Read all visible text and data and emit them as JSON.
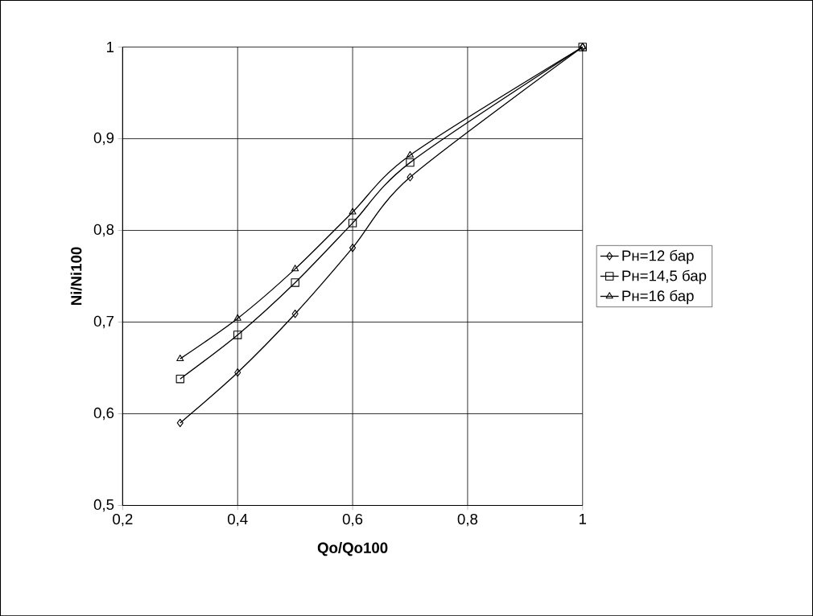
{
  "chart_data": {
    "type": "line",
    "xlabel": "Qo/Qo100",
    "ylabel": "Ni/Ni100",
    "xlim": [
      0.2,
      1
    ],
    "ylim": [
      0.5,
      1
    ],
    "xticks": [
      {
        "value": 0.2,
        "label": "0,2"
      },
      {
        "value": 0.4,
        "label": "0,4"
      },
      {
        "value": 0.6,
        "label": "0,6"
      },
      {
        "value": 0.8,
        "label": "0,8"
      },
      {
        "value": 1,
        "label": "1"
      }
    ],
    "yticks": [
      {
        "value": 0.5,
        "label": "0,5"
      },
      {
        "value": 0.6,
        "label": "0,6"
      },
      {
        "value": 0.7,
        "label": "0,7"
      },
      {
        "value": 0.8,
        "label": "0,8"
      },
      {
        "value": 0.9,
        "label": "0,9"
      },
      {
        "value": 1,
        "label": "1"
      }
    ],
    "x": [
      0.3,
      0.4,
      0.5,
      0.6,
      0.7,
      1
    ],
    "grid": true,
    "legend": "right",
    "line_style": "solid",
    "series": [
      {
        "name": "Pн=12 бар",
        "color": "#000000",
        "marker": "diamond",
        "values": [
          0.59,
          0.645,
          0.709,
          0.781,
          0.858,
          1
        ]
      },
      {
        "name": "Pн=14,5 бар",
        "color": "#000000",
        "marker": "square",
        "values": [
          0.638,
          0.686,
          0.743,
          0.808,
          0.874,
          1
        ]
      },
      {
        "name": "Pн=16 бар",
        "color": "#000000",
        "marker": "triangle",
        "values": [
          0.66,
          0.704,
          0.758,
          0.82,
          0.882,
          1
        ]
      }
    ]
  }
}
